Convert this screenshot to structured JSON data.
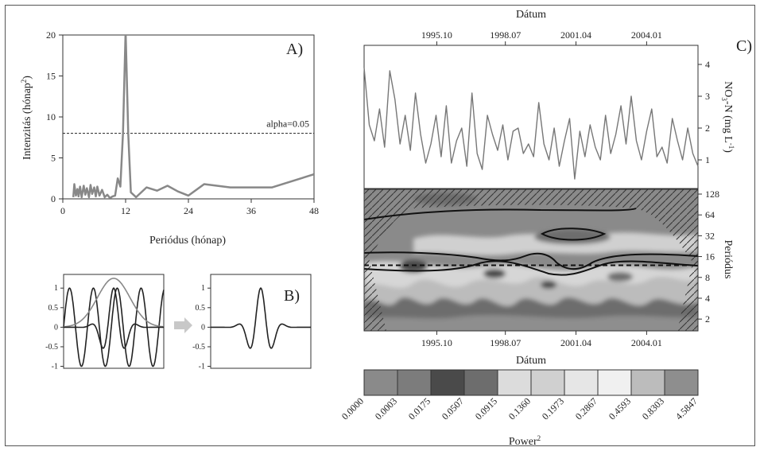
{
  "panels": {
    "a": "A)",
    "b": "B)",
    "c": "C)"
  },
  "chart_data": [
    {
      "id": "A",
      "type": "line",
      "xlabel": "Periódus (hónap)",
      "ylabel": "Intenzitás (hónap",
      "ylabel_sup": "2",
      "ylabel_close": ")",
      "xlim": [
        0,
        48
      ],
      "ylim": [
        0,
        20
      ],
      "xticks": [
        0,
        12,
        24,
        36,
        48
      ],
      "yticks": [
        0,
        5,
        10,
        15,
        20
      ],
      "threshold": {
        "value": 8,
        "label": "alpha=0.05"
      },
      "series": [
        {
          "x": [
            2,
            2.2,
            2.5,
            2.8,
            3,
            3.3,
            3.6,
            4,
            4.3,
            4.6,
            5,
            5.3,
            5.6,
            6,
            6.3,
            6.6,
            7,
            7.5,
            8,
            8.5,
            9,
            9.5,
            10,
            10.5,
            11,
            11.5,
            12,
            12.5,
            13,
            14,
            16,
            18,
            20,
            22,
            24,
            27,
            32,
            40,
            48
          ],
          "y": [
            0.2,
            1.8,
            0.4,
            1.2,
            0.3,
            1.5,
            0.2,
            1.6,
            0.5,
            1.3,
            0.2,
            1.7,
            0.6,
            1.4,
            0.3,
            1.5,
            0.4,
            1.1,
            0.2,
            0.5,
            0.1,
            0.3,
            0.4,
            2.5,
            1.5,
            8,
            20.5,
            8,
            0.8,
            0.2,
            1.4,
            1.0,
            1.6,
            0.9,
            0.4,
            1.8,
            1.4,
            1.4,
            3.0
          ]
        }
      ]
    },
    {
      "id": "B1",
      "type": "line",
      "xlim": [
        0,
        16
      ],
      "ylim": [
        -1.05,
        1.35
      ],
      "yticks": [
        -1,
        -0.5,
        0,
        0.5,
        1
      ],
      "series": [
        {
          "name": "sinus",
          "kind": "sine",
          "omega": 1.65,
          "amp": 1
        },
        {
          "name": "envelope",
          "kind": "gauss",
          "center": 8,
          "sigma": 2.6,
          "amp": 1.25
        },
        {
          "name": "wavelet",
          "kind": "wavelet",
          "center": 8,
          "sigma": 1.6,
          "omega": 1.65,
          "amp": 1
        }
      ]
    },
    {
      "id": "B2",
      "type": "line",
      "xlim": [
        0,
        16
      ],
      "ylim": [
        -1.05,
        1.35
      ],
      "yticks": [
        -1,
        -0.5,
        0,
        0.5,
        1
      ],
      "series": [
        {
          "name": "wavelet",
          "kind": "wavelet",
          "center": 8,
          "sigma": 1.6,
          "omega": 1.65,
          "amp": 1
        }
      ]
    },
    {
      "id": "C-top",
      "type": "line",
      "title": "Dátum",
      "ylabel": "NO",
      "ylabel_rest": "-N (mg L",
      "ylabel_sub": "3",
      "ylabel_sup": "-1",
      "ylabel_close": ")",
      "xlim": [
        1993.0,
        2006.0
      ],
      "ylim": [
        0.1,
        4.6
      ],
      "xticks": [
        "1995.10",
        "1998.07",
        "2001.04",
        "2004.01"
      ],
      "xtick_pos": [
        1995.83,
        1998.5,
        2001.25,
        2004.0
      ],
      "yticks": [
        1,
        2,
        3,
        4
      ],
      "series": [
        {
          "x": [
            1993.0,
            1993.2,
            1993.4,
            1993.6,
            1993.8,
            1994.0,
            1994.2,
            1994.4,
            1994.6,
            1994.8,
            1995.0,
            1995.2,
            1995.4,
            1995.6,
            1995.8,
            1996.0,
            1996.2,
            1996.4,
            1996.6,
            1996.8,
            1997.0,
            1997.2,
            1997.4,
            1997.6,
            1997.8,
            1998.0,
            1998.2,
            1998.4,
            1998.6,
            1998.8,
            1999.0,
            1999.2,
            1999.4,
            1999.6,
            1999.8,
            2000.0,
            2000.2,
            2000.4,
            2000.6,
            2000.8,
            2001.0,
            2001.2,
            2001.4,
            2001.6,
            2001.8,
            2002.0,
            2002.2,
            2002.4,
            2002.6,
            2002.8,
            2003.0,
            2003.2,
            2003.4,
            2003.6,
            2003.8,
            2004.0,
            2004.2,
            2004.4,
            2004.6,
            2004.8,
            2005.0,
            2005.2,
            2005.4,
            2005.6,
            2005.8,
            2006.0
          ],
          "y": [
            3.9,
            2.1,
            1.6,
            2.6,
            1.4,
            3.8,
            2.9,
            1.5,
            2.4,
            1.3,
            3.1,
            1.8,
            0.9,
            1.5,
            2.4,
            1.1,
            2.7,
            0.9,
            1.6,
            2.0,
            0.8,
            3.1,
            1.2,
            0.7,
            2.4,
            1.8,
            1.3,
            2.1,
            1.0,
            1.9,
            2.0,
            1.2,
            1.5,
            1.1,
            2.8,
            1.5,
            1.0,
            2.0,
            0.8,
            1.6,
            2.3,
            0.4,
            1.9,
            1.1,
            2.1,
            1.4,
            1.0,
            2.4,
            1.2,
            1.8,
            2.7,
            1.5,
            3.0,
            1.6,
            1.0,
            1.9,
            2.6,
            1.1,
            1.4,
            0.9,
            2.3,
            1.6,
            1.0,
            2.0,
            1.2,
            0.8
          ]
        }
      ]
    },
    {
      "id": "C-bottom",
      "type": "heatmap",
      "xlabel": "Dátum",
      "ylabel": "Periódus",
      "xticks": [
        "1995.10",
        "1998.07",
        "2001.04",
        "2004.01"
      ],
      "yticks": [
        2,
        4,
        8,
        16,
        32,
        64,
        128
      ],
      "significance_period": 12,
      "colorbar": {
        "label": "Power",
        "label_sup": "2",
        "levels": [
          "0.0000",
          "0.0003",
          "0.0175",
          "0.0507",
          "0.0915",
          "0.1360",
          "0.1973",
          "0.2867",
          "0.4593",
          "0.8303",
          "4.5847"
        ],
        "colors": [
          "#8a8a8a",
          "#7c7c7c",
          "#4a4a4a",
          "#6d6d6d",
          "#dcdcdc",
          "#d0d0d0",
          "#e6e6e6",
          "#f0f0f0",
          "#bcbcbc",
          "#8e8e8e"
        ]
      }
    }
  ]
}
